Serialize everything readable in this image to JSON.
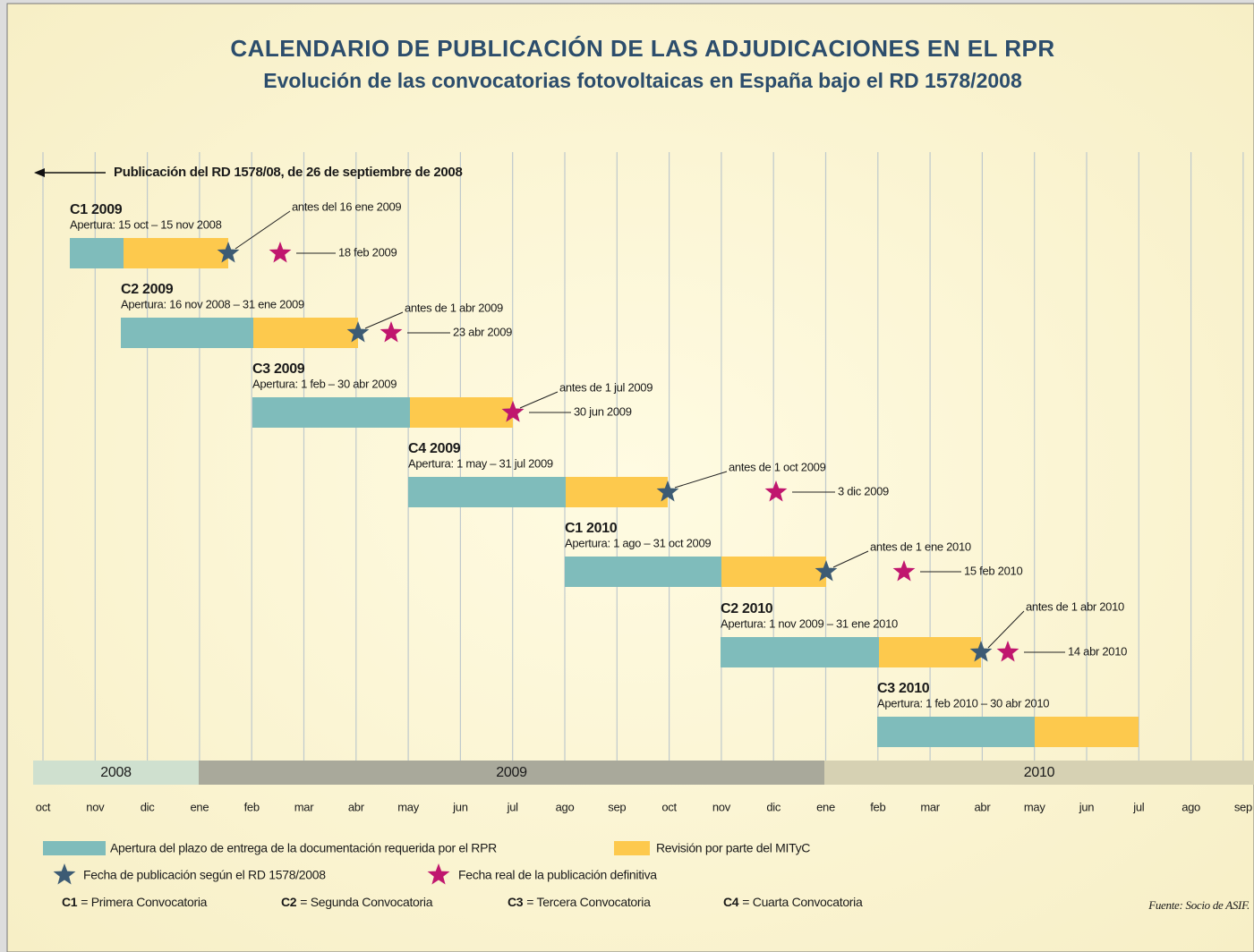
{
  "title": "CALENDARIO DE PUBLICACIÓN DE LAS ADJUDICACIONES EN EL RPR",
  "subtitle": "Evolución de las convocatorias fotovoltaicas en España bajo el RD 1578/2008",
  "rd_note": "Publicación del RD 1578/08, de 26 de septiembre de 2008",
  "calls": [
    {
      "name": "C1 2009",
      "apertura": "Apertura: 15 oct – 15 nov 2008",
      "antes": "antes del 16 ene 2009",
      "real": "18 feb 2009"
    },
    {
      "name": "C2 2009",
      "apertura": "Apertura: 16 nov 2008 – 31 ene 2009",
      "antes": "antes de 1 abr 2009",
      "real": "23 abr 2009"
    },
    {
      "name": "C3 2009",
      "apertura": "Apertura: 1 feb – 30 abr 2009",
      "antes": "antes de 1 jul 2009",
      "real": "30 jun 2009"
    },
    {
      "name": "C4 2009",
      "apertura": "Apertura: 1 may – 31 jul 2009",
      "antes": "antes de 1 oct 2009",
      "real": "3 dic 2009"
    },
    {
      "name": "C1 2010",
      "apertura": "Apertura: 1 ago – 31 oct 2009",
      "antes": "antes de 1 ene 2010",
      "real": "15 feb 2010"
    },
    {
      "name": "C2 2010",
      "apertura": "Apertura: 1 nov 2009 – 31 ene 2010",
      "antes": "antes de 1 abr 2010",
      "real": "14 abr 2010"
    },
    {
      "name": "C3 2010",
      "apertura": "Apertura: 1 feb 2010 – 30 abr 2010"
    }
  ],
  "years": [
    "2008",
    "2009",
    "2010"
  ],
  "months": [
    "oct",
    "nov",
    "dic",
    "ene",
    "feb",
    "mar",
    "abr",
    "may",
    "jun",
    "jul",
    "ago",
    "sep",
    "oct",
    "nov",
    "dic",
    "ene",
    "feb",
    "mar",
    "abr",
    "may",
    "jun",
    "jul",
    "ago",
    "sep"
  ],
  "legend": {
    "open": "Apertura del plazo de entrega de la documentación requerida por el RPR",
    "review": "Revisión por parte del MITyC",
    "planned": "Fecha de publicación según el RD 1578/2008",
    "actual": "Fecha real de la publicación definitiva"
  },
  "definitions": [
    {
      "code": "C1",
      "text": "= Primera Convocatoria"
    },
    {
      "code": "C2",
      "text": "= Segunda Convocatoria"
    },
    {
      "code": "C3",
      "text": "= Tercera Convocatoria"
    },
    {
      "code": "C4",
      "text": "= Cuarta Convocatoria"
    }
  ],
  "source": "Fuente: Socio de ASIF."
}
